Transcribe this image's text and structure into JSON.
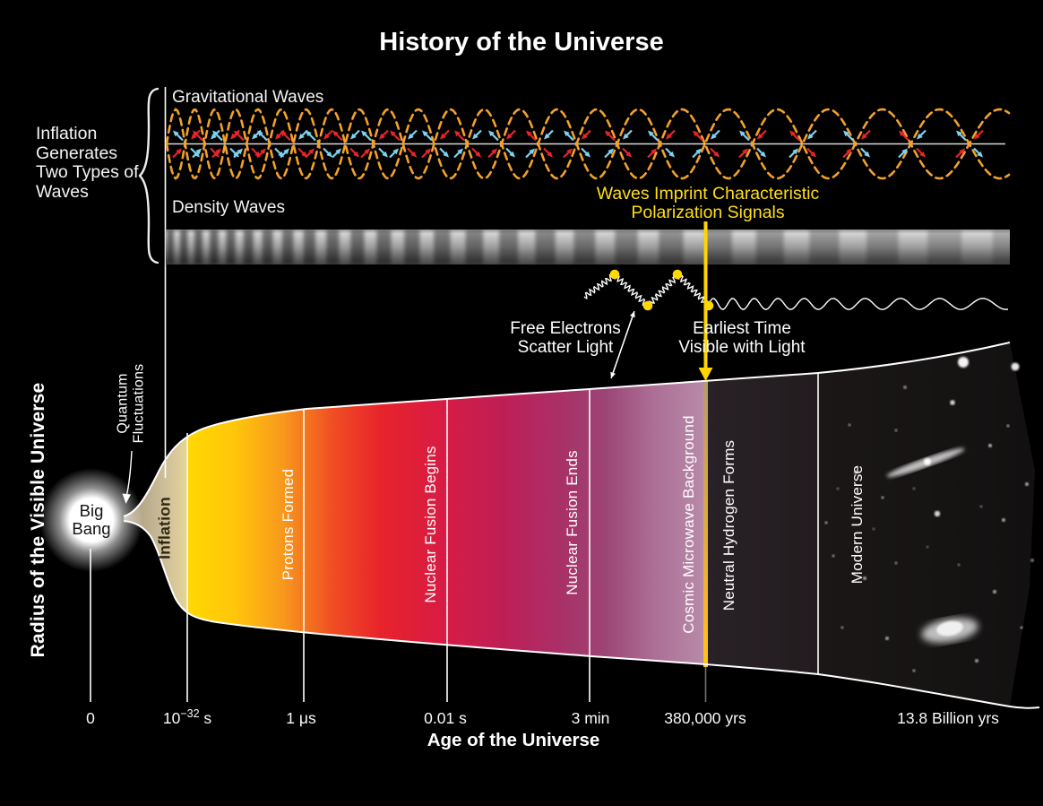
{
  "title": "History of the Universe",
  "left_note": {
    "lines": [
      "Inflation",
      "Generates",
      "Two Types of",
      "Waves"
    ]
  },
  "y_axis_label": "Radius of the Visible Universe",
  "panels": {
    "gravitational_label": "Gravitational Waves",
    "density_label": "Density Waves"
  },
  "polarization_note": {
    "lines": [
      "Waves Imprint Characteristic",
      "Polarization Signals"
    ]
  },
  "free_electrons_note": {
    "lines": [
      "Free Electrons",
      "Scatter Light"
    ]
  },
  "earliest_time_note": {
    "lines": [
      "Earliest Time",
      "Visible with Light"
    ]
  },
  "big_bang": {
    "lines": [
      "Big",
      "Bang"
    ]
  },
  "quantum_fluctuations": {
    "lines": [
      "Quantum",
      "Fluctuations"
    ]
  },
  "epochs": [
    {
      "label": "Inflation"
    },
    {
      "label": "Protons Formed"
    },
    {
      "label": "Nuclear Fusion Begins"
    },
    {
      "label": "Nuclear Fusion Ends"
    },
    {
      "label": "Cosmic Microwave Background"
    },
    {
      "label": "Neutral Hydrogen Forms"
    },
    {
      "label": "Modern Universe"
    }
  ],
  "x_axis": {
    "title": "Age of the Universe",
    "ticks": [
      {
        "pre": "0",
        "sup": "",
        "post": ""
      },
      {
        "pre": "10",
        "sup": "−32",
        "post": " s"
      },
      {
        "pre": "1 μs",
        "sup": "",
        "post": ""
      },
      {
        "pre": "0.01 s",
        "sup": "",
        "post": ""
      },
      {
        "pre": "3 min",
        "sup": "",
        "post": ""
      },
      {
        "pre": "380,000 yrs",
        "sup": "",
        "post": ""
      },
      {
        "pre": "13.8 Billion yrs",
        "sup": "",
        "post": ""
      }
    ]
  },
  "colors": {
    "background": "#000000",
    "gravitational_wave_dash": "#F3A129",
    "red_polarization_arrow": "#E8242C",
    "blue_polarization_arrow": "#7FD2F1",
    "highlight_yellow": "#FFDE17",
    "cone_yellow": "#FFD702",
    "cone_orange": "#F8991D",
    "cone_red": "#E8232B",
    "cone_magenta": "#BF1E55",
    "cone_purple": "#9C4575",
    "cmb_pink": "#B88AA9",
    "inflation_tan": "#CCBE99"
  }
}
